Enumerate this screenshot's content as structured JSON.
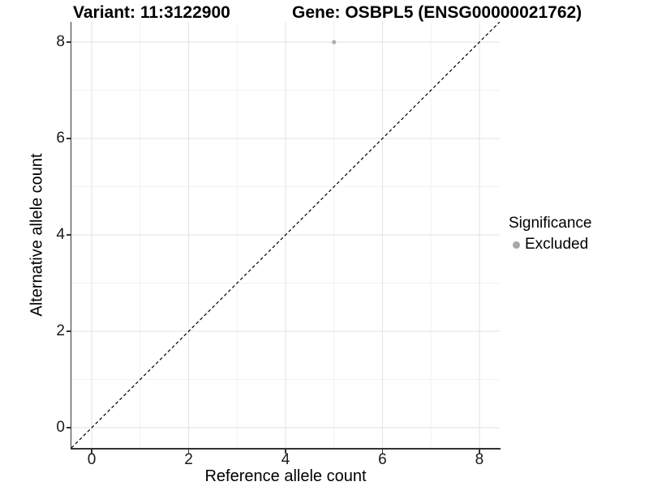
{
  "chart_data": {
    "type": "scatter",
    "title_left": "Variant: 11:3122900",
    "title_right": "Gene: OSBPL5 (ENSG00000021762)",
    "xlabel": "Reference allele count",
    "ylabel": "Alternative allele count",
    "xlim": [
      -0.42,
      8.42
    ],
    "ylim": [
      -0.42,
      8.42
    ],
    "x_ticks": [
      0,
      2,
      4,
      6,
      8
    ],
    "y_ticks": [
      0,
      2,
      4,
      6,
      8
    ],
    "x_minor_gridlines": [
      1,
      3,
      5,
      7
    ],
    "y_minor_gridlines": [
      1,
      3,
      5,
      7
    ],
    "grid": true,
    "points": [
      {
        "x": 5,
        "y": 8,
        "series": "Excluded"
      }
    ],
    "reference_line": {
      "slope": 1,
      "intercept": 0,
      "style": "dashed"
    },
    "legend": {
      "position": "right",
      "title": "Significance",
      "items": [
        {
          "label": "Excluded",
          "color": "#b0b0b0"
        }
      ]
    }
  },
  "colors": {
    "point": "#b0b0b0",
    "legend_dot": "#a8a8a8",
    "grid_major": "#e6e6e6",
    "grid_minor": "#f2f2f2",
    "axis_line": "#333333",
    "reference_line": "#000000",
    "background": "#ffffff"
  }
}
